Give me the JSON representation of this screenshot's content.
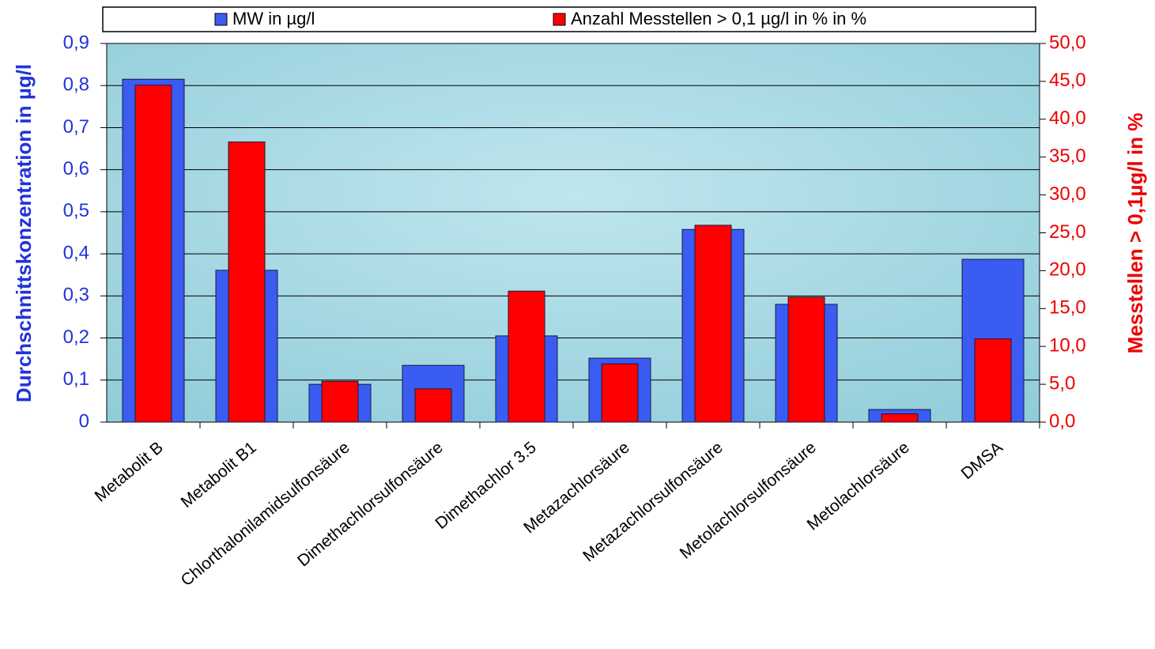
{
  "chart_data": {
    "type": "bar",
    "categories": [
      "Metabolit B",
      "Metabolit B1",
      "Chlorthalonilamidsulfonsäure",
      "Dimethachlorsulfonsäure",
      "Dimethachlor 3.5",
      "Metazachlorsäure",
      "Metazachlorsulfonsäure",
      "Metolachlorsulfonsäure",
      "Metolachlorsäure",
      "DMSA"
    ],
    "series": [
      {
        "name": "MW in µg/l",
        "color": "#3b5cf2",
        "values": [
          0.815,
          0.361,
          0.09,
          0.135,
          0.205,
          0.152,
          0.458,
          0.28,
          0.03,
          0.387
        ]
      },
      {
        "name": "Anzahl Messtellen > 0,1 µg/l in % in %",
        "color": "#ff0000",
        "axis": "y2",
        "values": [
          44.5,
          37.0,
          5.4,
          4.4,
          17.3,
          7.7,
          26.0,
          16.5,
          1.1,
          11.0
        ]
      }
    ],
    "y_label": "Durchschnittskonzentration in µg/l",
    "y2_label": "Messtellen > 0,1µg/l in %",
    "ylim": [
      0,
      0.9
    ],
    "yticks": [
      {
        "value": 0,
        "label": "0"
      },
      {
        "value": 0.1,
        "label": "0,1"
      },
      {
        "value": 0.2,
        "label": "0,2"
      },
      {
        "value": 0.3,
        "label": "0,3"
      },
      {
        "value": 0.4,
        "label": "0,4"
      },
      {
        "value": 0.5,
        "label": "0,5"
      },
      {
        "value": 0.6,
        "label": "0,6"
      },
      {
        "value": 0.7,
        "label": "0,7"
      },
      {
        "value": 0.8,
        "label": "0,8"
      },
      {
        "value": 0.9,
        "label": "0,9"
      }
    ],
    "y2lim": [
      0,
      50
    ],
    "y2ticks": [
      {
        "value": 0,
        "label": "0,0"
      },
      {
        "value": 5,
        "label": "5,0"
      },
      {
        "value": 10,
        "label": "10,0"
      },
      {
        "value": 15,
        "label": "15,0"
      },
      {
        "value": 20,
        "label": "20,0"
      },
      {
        "value": 25,
        "label": "25,0"
      },
      {
        "value": 30,
        "label": "30,0"
      },
      {
        "value": 35,
        "label": "35,0"
      },
      {
        "value": 40,
        "label": "40,0"
      },
      {
        "value": 45,
        "label": "45,0"
      },
      {
        "value": 50,
        "label": "50,0"
      }
    ],
    "grid": true
  }
}
